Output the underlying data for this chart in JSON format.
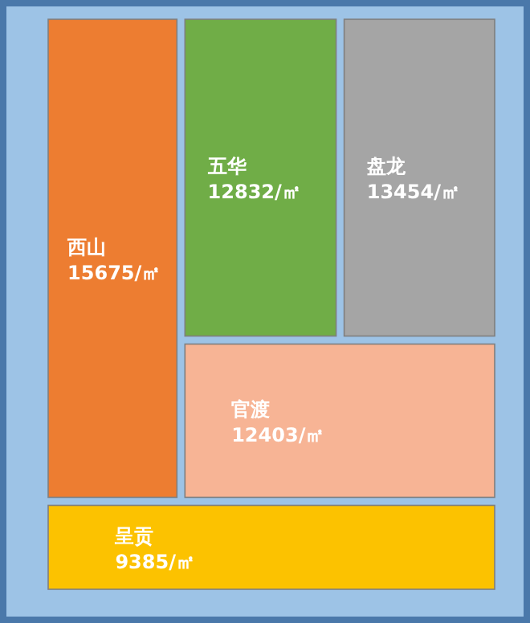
{
  "chart_data": {
    "type": "other",
    "categories": [
      "西山",
      "五华",
      "盘龙",
      "官渡",
      "呈贡"
    ],
    "values": [
      15675,
      12832,
      13454,
      12403,
      9385
    ],
    "value_labels": [
      "15675/㎡",
      "12832/㎡",
      "13454/㎡",
      "12403/㎡",
      "9385/㎡"
    ],
    "colors": [
      "#ed7d31",
      "#70ad47",
      "#a5a5a5",
      "#f7b495",
      "#fcc200"
    ]
  }
}
